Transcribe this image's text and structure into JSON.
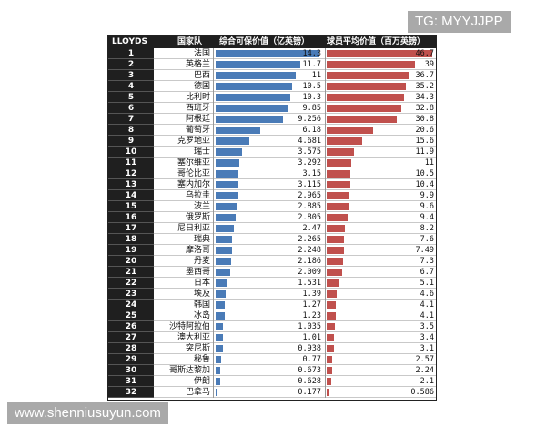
{
  "watermarks": {
    "top_right": "TG: MYYJJPP",
    "bottom_left": "www.shenniusuyun.com"
  },
  "colors": {
    "series_a": "#4a7bb7",
    "series_b": "#c0504d",
    "header_bg": "#1f1f1f"
  },
  "chart_data": {
    "type": "bar",
    "title": "",
    "headers": {
      "rank": "LLOYDS",
      "country": "国家队",
      "series_a": "综合可保价值（亿英镑）",
      "series_b": "球员平均价值（百万英镑）"
    },
    "ranks": [
      "1",
      "2",
      "3",
      "4",
      "5",
      "6",
      "7",
      "8",
      "9",
      "10",
      "11",
      "12",
      "13",
      "14",
      "15",
      "16",
      "17",
      "18",
      "19",
      "20",
      "21",
      "22",
      "23",
      "24",
      "25",
      "26",
      "27",
      "28",
      "29",
      "30",
      "31",
      "32"
    ],
    "categories": [
      "法国",
      "英格兰",
      "巴西",
      "德国",
      "比利时",
      "西班牙",
      "阿根廷",
      "葡萄牙",
      "克罗地亚",
      "瑞士",
      "塞尔维亚",
      "哥伦比亚",
      "塞内加尔",
      "乌拉圭",
      "波兰",
      "俄罗斯",
      "尼日利亚",
      "瑞典",
      "摩洛哥",
      "丹麦",
      "墨西哥",
      "日本",
      "埃及",
      "韩国",
      "冰岛",
      "沙特阿拉伯",
      "澳大利亚",
      "突尼斯",
      "秘鲁",
      "哥斯达黎加",
      "伊朗",
      "巴拿马"
    ],
    "series": [
      {
        "name": "综合可保价值（亿英镑）",
        "values": [
          14.3,
          11.7,
          11,
          10.5,
          10.3,
          9.85,
          9.256,
          6.18,
          4.681,
          3.575,
          3.292,
          3.15,
          3.115,
          2.965,
          2.885,
          2.805,
          2.47,
          2.265,
          2.248,
          2.186,
          2.009,
          1.531,
          1.39,
          1.27,
          1.23,
          1.035,
          1.01,
          0.938,
          0.77,
          0.673,
          0.628,
          0.177
        ],
        "labels": [
          "14.3",
          "11.7",
          "11",
          "10.5",
          "10.3",
          "9.85",
          "9.256",
          "6.18",
          "4.681",
          "3.575",
          "3.292",
          "3.15",
          "3.115",
          "2.965",
          "2.885",
          "2.805",
          "2.47",
          "2.265",
          "2.248",
          "2.186",
          "2.009",
          "1.531",
          "1.39",
          "1.27",
          "1.23",
          "1.035",
          "1.01",
          "0.938",
          "0.77",
          "0.673",
          "0.628",
          "0.177"
        ]
      },
      {
        "name": "球员平均价值（百万英镑）",
        "values": [
          46.7,
          39,
          36.7,
          35.2,
          34.3,
          32.8,
          30.8,
          20.6,
          15.6,
          11.9,
          11,
          10.5,
          10.4,
          9.9,
          9.6,
          9.4,
          8.2,
          7.6,
          7.49,
          7.3,
          6.7,
          5.1,
          4.6,
          4.1,
          4.1,
          3.5,
          3.4,
          3.1,
          2.57,
          2.24,
          2.1,
          0.586
        ],
        "labels": [
          "46.7",
          "39",
          "36.7",
          "35.2",
          "34.3",
          "32.8",
          "30.8",
          "20.6",
          "15.6",
          "11.9",
          "11",
          "10.5",
          "10.4",
          "9.9",
          "9.6",
          "9.4",
          "8.2",
          "7.6",
          "7.49",
          "7.3",
          "6.7",
          "5.1",
          "4.6",
          "4.1",
          "4.1",
          "3.5",
          "3.4",
          "3.1",
          "2.57",
          "2.24",
          "2.1",
          "0.586"
        ]
      }
    ],
    "xlim_a": [
      0,
      14.3
    ],
    "xlim_b": [
      0,
      46.7
    ]
  }
}
